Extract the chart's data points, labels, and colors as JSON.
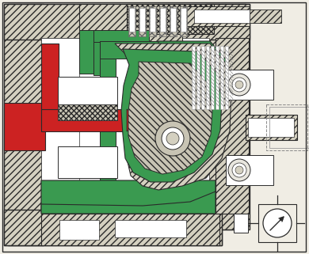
{
  "bg_color": "#f0ede4",
  "green": "#3a9a50",
  "green2": "#2d8845",
  "red": "#cc2222",
  "hatch_fc": "#d4d0c0",
  "hatch_fc2": "#c8c4b4",
  "line_color": "#2a2a2a",
  "white": "#ffffff",
  "light_gray": "#e8e6de",
  "med_gray": "#b0aca0",
  "dark_gray": "#888480",
  "shaft_gray": "#c0bcb0"
}
